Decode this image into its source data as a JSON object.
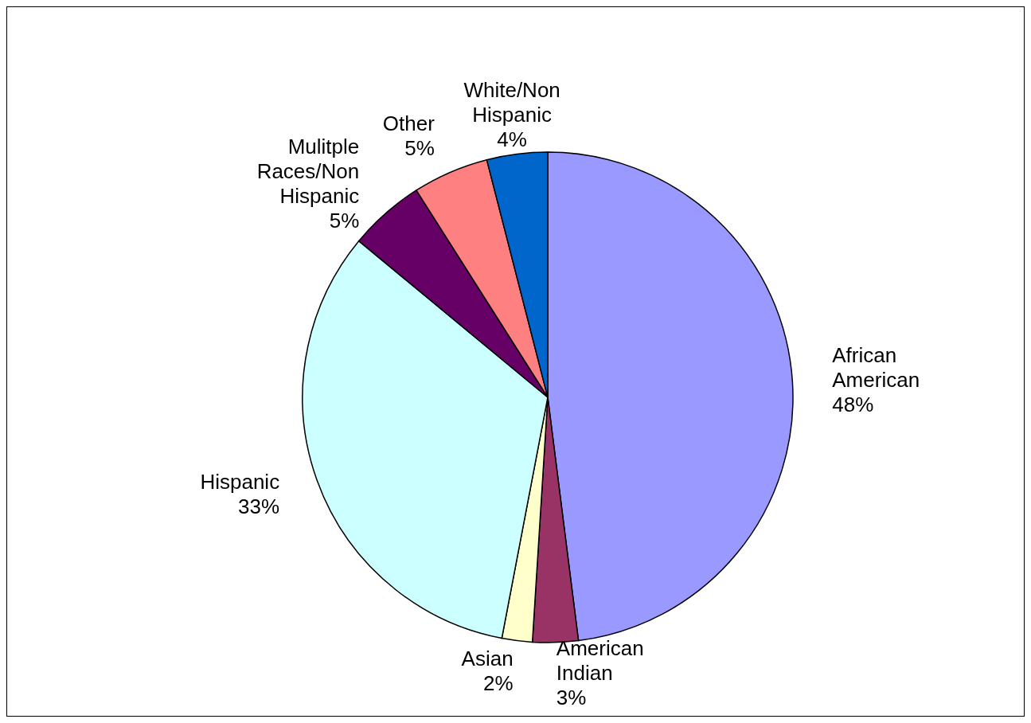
{
  "chart_data": {
    "type": "pie",
    "categories": [
      "African American",
      "American Indian",
      "Asian",
      "Hispanic",
      "Mulitple Races/Non Hispanic",
      "Other",
      "White/Non Hispanic"
    ],
    "values": [
      48,
      3,
      2,
      33,
      5,
      5,
      4
    ],
    "colors": [
      "#9999ff",
      "#993366",
      "#ffffcc",
      "#ccffff",
      "#660066",
      "#ff8080",
      "#0066cc"
    ],
    "value_labels": [
      "48%",
      "3%",
      "2%",
      "33%",
      "5%",
      "5%",
      "4%"
    ]
  }
}
